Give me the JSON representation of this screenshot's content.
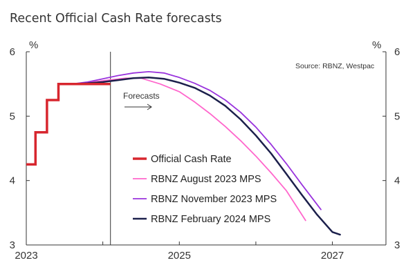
{
  "chart_data": {
    "type": "line",
    "title": "Recent Official Cash Rate forecasts",
    "ylabel_left": "%",
    "ylabel_right": "%",
    "source": "Source: RBNZ, Westpac",
    "annotation": "Forecasts",
    "forecast_start": 2024.1,
    "xlim": [
      2023,
      2027.7
    ],
    "ylim": [
      3,
      6
    ],
    "xticks": [
      {
        "value": 2023,
        "label": "2023"
      },
      {
        "value": 2025,
        "label": "2025"
      },
      {
        "value": 2027,
        "label": "2027"
      }
    ],
    "xticks_minor": [
      2024,
      2026
    ],
    "yticks": [
      {
        "value": 3,
        "label": "3"
      },
      {
        "value": 4,
        "label": "4"
      },
      {
        "value": 5,
        "label": "5"
      },
      {
        "value": 6,
        "label": "6"
      }
    ],
    "series": [
      {
        "name": "Official Cash Rate",
        "color": "#d7262e",
        "width": 3.5,
        "step": true,
        "x": [
          2023.0,
          2023.12,
          2023.12,
          2023.27,
          2023.27,
          2023.42,
          2023.42,
          2024.1
        ],
        "y": [
          4.25,
          4.25,
          4.75,
          4.75,
          5.25,
          5.25,
          5.5,
          5.5
        ]
      },
      {
        "name": "RBNZ August 2023 MPS",
        "color": "#ff66cc",
        "width": 1.8,
        "x": [
          2023.6,
          2023.8,
          2024.0,
          2024.3,
          2024.5,
          2024.75,
          2025.0,
          2025.2,
          2025.4,
          2025.6,
          2025.8,
          2026.0,
          2026.2,
          2026.4,
          2026.65
        ],
        "y": [
          5.5,
          5.52,
          5.55,
          5.59,
          5.59,
          5.5,
          5.38,
          5.22,
          5.04,
          4.84,
          4.62,
          4.38,
          4.12,
          3.84,
          3.38
        ]
      },
      {
        "name": "RBNZ November 2023 MPS",
        "color": "#9933dd",
        "width": 1.8,
        "x": [
          2023.6,
          2023.8,
          2024.0,
          2024.2,
          2024.4,
          2024.6,
          2024.8,
          2025.0,
          2025.2,
          2025.4,
          2025.6,
          2025.8,
          2026.0,
          2026.2,
          2026.4,
          2026.6,
          2026.85
        ],
        "y": [
          5.5,
          5.53,
          5.58,
          5.63,
          5.67,
          5.69,
          5.67,
          5.6,
          5.51,
          5.4,
          5.25,
          5.06,
          4.83,
          4.56,
          4.26,
          3.94,
          3.55
        ]
      },
      {
        "name": "RBNZ February 2024 MPS",
        "color": "#1b1f4b",
        "width": 2.5,
        "x": [
          2023.6,
          2023.8,
          2024.0,
          2024.2,
          2024.4,
          2024.6,
          2024.8,
          2025.0,
          2025.2,
          2025.4,
          2025.6,
          2025.8,
          2026.0,
          2026.2,
          2026.4,
          2026.6,
          2026.8,
          2027.0,
          2027.1
        ],
        "y": [
          5.5,
          5.51,
          5.53,
          5.56,
          5.59,
          5.6,
          5.58,
          5.52,
          5.44,
          5.32,
          5.16,
          4.95,
          4.7,
          4.42,
          4.1,
          3.78,
          3.47,
          3.2,
          3.16
        ]
      }
    ]
  }
}
